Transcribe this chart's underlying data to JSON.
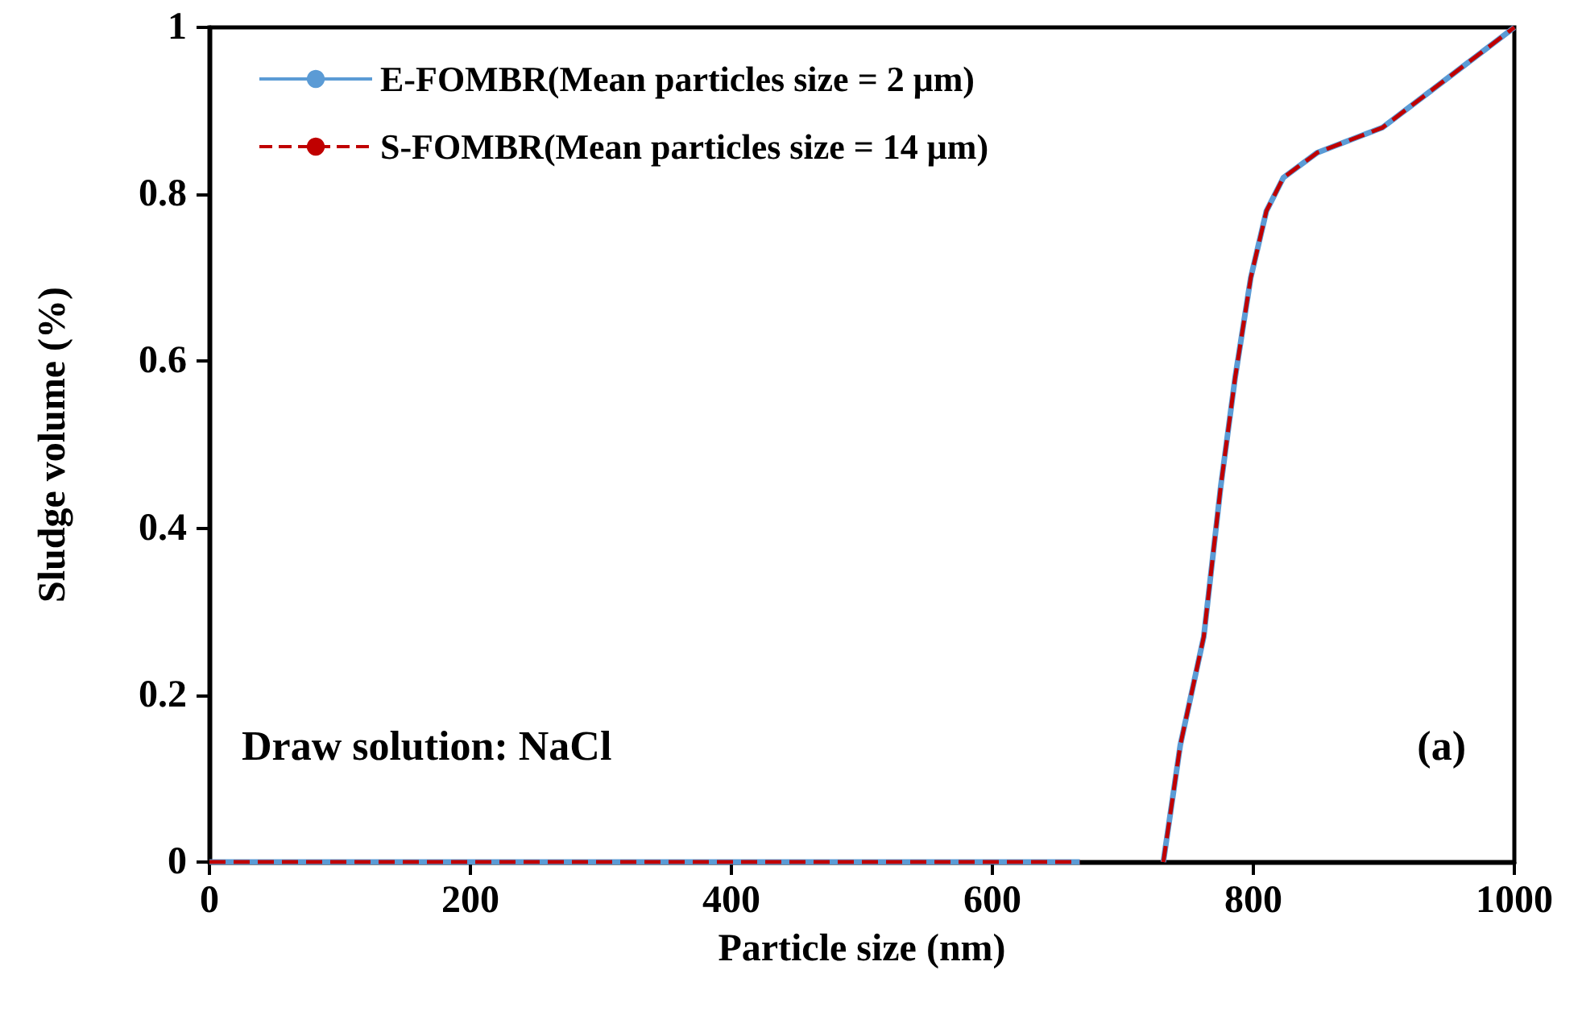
{
  "chart_data": {
    "type": "line",
    "xlabel": "Particle size (nm)",
    "ylabel": "Sludge volume (%)",
    "x": [
      0,
      100,
      200,
      300,
      400,
      500,
      600,
      667,
      700,
      731,
      744,
      762,
      775,
      786,
      798,
      810,
      823,
      849,
      899,
      1000
    ],
    "series": [
      {
        "name": "E-FOMBR(Mean particles size = 2 μm)",
        "color": "#5b9bd5",
        "line_style": "solid",
        "values": [
          0,
          0,
          0,
          0,
          0,
          0,
          0,
          0,
          null,
          0,
          0.14,
          0.27,
          0.45,
          0.58,
          0.7,
          0.78,
          0.82,
          0.85,
          0.88,
          1
        ]
      },
      {
        "name": "S-FOMBR(Mean particles size = 14 μm)",
        "color": "#c00000",
        "line_style": "dashed",
        "values": [
          0,
          0,
          0,
          0,
          0,
          0,
          0,
          0,
          null,
          0,
          0.14,
          0.27,
          0.45,
          0.58,
          0.7,
          0.78,
          0.82,
          0.85,
          0.88,
          1
        ]
      }
    ],
    "xlim": [
      0,
      1000
    ],
    "xticks": [
      0,
      200,
      400,
      600,
      800,
      1000
    ],
    "ylim": [
      0,
      1
    ],
    "yticks": [
      0,
      0.2,
      0.4,
      0.6,
      0.8,
      1
    ],
    "grid": false,
    "legend": "top left",
    "marker": "none",
    "annotations": [
      "Draw solution: NaCl",
      "(a)"
    ]
  }
}
